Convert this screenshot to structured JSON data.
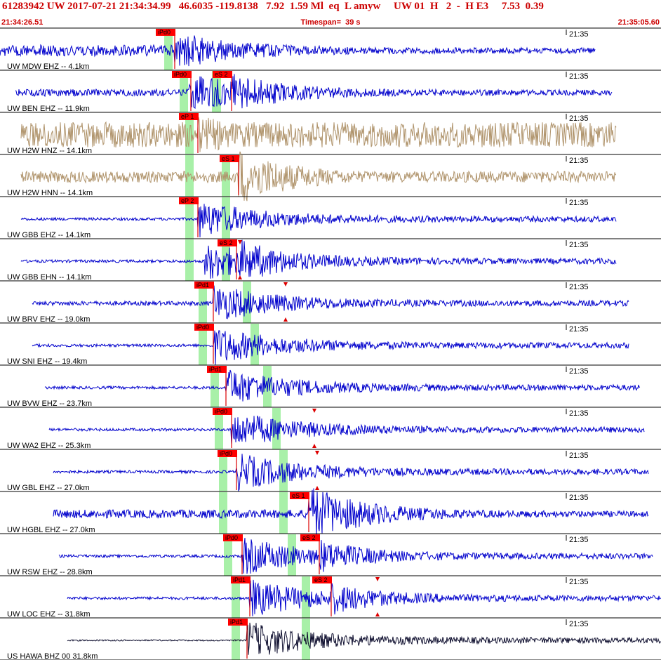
{
  "header": {
    "title": "61283942 UW 2017-07-21 21:34:34.99   46.6035 -119.8138   7.92  1.59 Ml  eq  L amyw     UW 01  H   2  -  H E3     7.53  0.39",
    "start_time": "21:34:26.51",
    "timespan": "Timespan=  39 s",
    "end_time": "21:35:05.60"
  },
  "colors": {
    "blue_trace": "#0000cc",
    "tan_trace": "#b0946c",
    "black_trace": "#101030",
    "pick_box": "#ff0000",
    "pick_line": "#dd0000",
    "green_band": "#a8f0a8",
    "separator": "#000000",
    "header_text": "#cc0000"
  },
  "traces": [
    {
      "label": "UW MDW EHZ -- 4.1km",
      "time": "21:35",
      "color": "blue",
      "picks": [
        "iPd0"
      ],
      "markers": []
    },
    {
      "label": "UW BEN EHZ -- 11.9km",
      "time": "21:35",
      "color": "blue",
      "picks": [
        "iPd0",
        "eS 2"
      ],
      "markers": []
    },
    {
      "label": "UW H2W HNZ -- 14.1km",
      "time": "21:35",
      "color": "tan",
      "picks": [
        "eP 1"
      ],
      "markers": []
    },
    {
      "label": "UW H2W HNN -- 14.1km",
      "time": "21:35",
      "color": "tan",
      "picks": [
        "eS 1"
      ],
      "markers": []
    },
    {
      "label": "UW GBB EHZ -- 14.1km",
      "time": "21:35",
      "color": "blue",
      "picks": [
        "eP 2"
      ],
      "markers": []
    },
    {
      "label": "UW GBB EHN -- 14.1km",
      "time": "21:35",
      "color": "blue",
      "picks": [
        "eS 2"
      ],
      "markers": [
        "triangle"
      ]
    },
    {
      "label": "UW BRV EHZ -- 19.0km",
      "time": "21:35",
      "color": "blue",
      "picks": [
        "iPd1"
      ],
      "markers": [
        "triangle"
      ]
    },
    {
      "label": "UW SNI EHZ -- 19.4km",
      "time": "21:35",
      "color": "blue",
      "picks": [
        "iPd0"
      ],
      "markers": []
    },
    {
      "label": "UW BVW EHZ -- 23.7km",
      "time": "21:35",
      "color": "blue",
      "picks": [
        "iPd1"
      ],
      "markers": []
    },
    {
      "label": "UW WA2 EHZ -- 25.3km",
      "time": "21:35",
      "color": "blue",
      "picks": [
        "iPd0"
      ],
      "markers": [
        "triangle"
      ]
    },
    {
      "label": "UW GBL EHZ -- 27.0km",
      "time": "21:35",
      "color": "blue",
      "picks": [
        "iPd0"
      ],
      "markers": [
        "triangle"
      ]
    },
    {
      "label": "UW HGBL EHZ -- 27.0km",
      "time": "21:35",
      "color": "blue",
      "picks": [
        "eS 1"
      ],
      "markers": []
    },
    {
      "label": "UW RSW EHZ -- 28.8km",
      "time": "21:35",
      "color": "blue",
      "picks": [
        "iPd0",
        "eS 2"
      ],
      "markers": []
    },
    {
      "label": "UW LOC EHZ -- 31.8km",
      "time": "21:35",
      "color": "blue",
      "picks": [
        "iPd1",
        "eS 2"
      ],
      "markers": [
        "triangle"
      ]
    },
    {
      "label": "US HAWA BHZ 00 31.8km",
      "time": "21:35",
      "color": "black",
      "picks": [
        "iPd1"
      ],
      "markers": []
    }
  ]
}
